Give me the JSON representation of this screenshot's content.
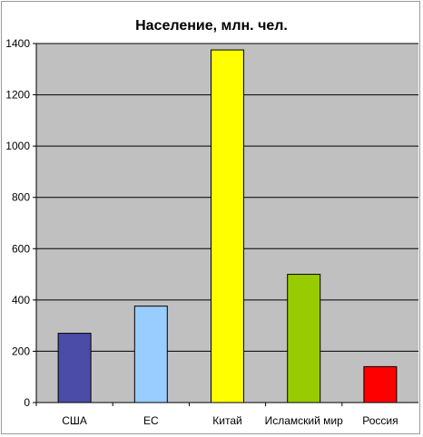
{
  "chart_data": {
    "type": "bar",
    "title": "Население, млн. чел.",
    "xlabel": "",
    "ylabel": "",
    "categories": [
      "США",
      "ЕС",
      "Китай",
      "Исламский мир",
      "Россия"
    ],
    "values": [
      270,
      376,
      1375,
      500,
      140
    ],
    "colors": [
      "#4b4ba8",
      "#99ccff",
      "#ffff00",
      "#99cc00",
      "#ff0000"
    ],
    "ylim": [
      0,
      1400
    ],
    "yticks": [
      0,
      200,
      400,
      600,
      800,
      1000,
      1200,
      1400
    ],
    "plot_background": "#c0c0c0",
    "gridlines": true,
    "legend": "none"
  }
}
